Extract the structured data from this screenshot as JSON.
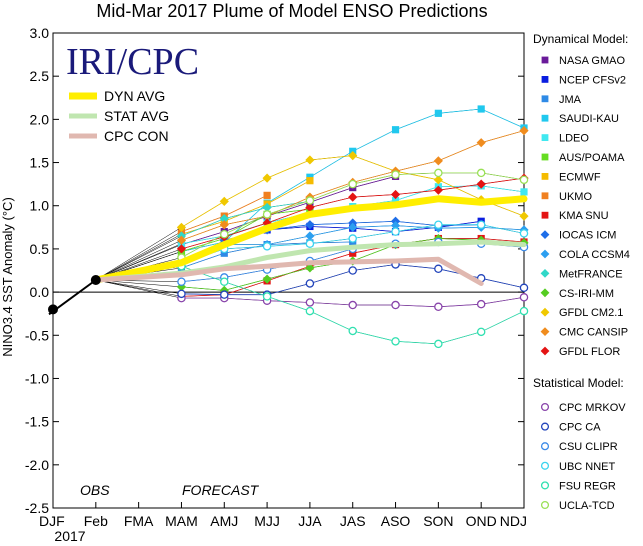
{
  "chart_data": {
    "type": "line",
    "title": "Mid-Mar 2017 Plume of Model ENSO Predictions",
    "logo_text": "IRI/CPC",
    "ylabel": "NINO3.4 SST Anomaly (°C)",
    "xlabel": "",
    "ylim": [
      -2.5,
      3.0
    ],
    "yticks": [
      "3.0",
      "2.5",
      "2.0",
      "1.5",
      "1.0",
      "0.5",
      "0.0",
      "-0.5",
      "-1.0",
      "-1.5",
      "-2.0",
      "-2.5"
    ],
    "categories": [
      "DJF",
      "Feb",
      "FMA",
      "MAM",
      "AMJ",
      "MJJ",
      "JJA",
      "JAS",
      "ASO",
      "SON",
      "OND",
      "NDJ"
    ],
    "year_label": "2017",
    "obs_label": "OBS",
    "forecast_label": "FORECAST",
    "grid": false,
    "zero_line": true,
    "observed": {
      "x": [
        "DJF",
        "Feb"
      ],
      "values": [
        -0.2,
        0.14
      ],
      "color": "#000000"
    },
    "averages": [
      {
        "name": "DYN AVG",
        "color": "#ffee00",
        "values": [
          null,
          0.14,
          null,
          0.34,
          0.55,
          0.74,
          0.9,
          0.97,
          1.01,
          1.08,
          1.04,
          1.08
        ]
      },
      {
        "name": "STAT AVG",
        "color": "#c0e6b0",
        "values": [
          null,
          0.14,
          null,
          0.22,
          0.29,
          0.4,
          0.48,
          0.52,
          0.55,
          0.56,
          0.58,
          0.55
        ]
      },
      {
        "name": "CPC CON",
        "color": "#e0b8b0",
        "values": [
          null,
          0.14,
          null,
          0.2,
          0.27,
          0.3,
          0.34,
          0.35,
          0.36,
          0.38,
          0.1,
          null
        ]
      }
    ],
    "dynamical_title": "Dynamical Model:",
    "statistical_title": "Statistical Model:",
    "series": [
      {
        "name": "NASA GMAO",
        "group": "dynamical",
        "marker": "square",
        "color": "#6a1b9a",
        "values": [
          null,
          0.14,
          null,
          0.55,
          0.7,
          0.88,
          1.04,
          1.21,
          1.34,
          null,
          null,
          null
        ]
      },
      {
        "name": "NCEP CFSv2",
        "group": "dynamical",
        "marker": "square",
        "color": "#0a1ee0",
        "values": [
          null,
          0.14,
          null,
          0.36,
          0.55,
          0.72,
          0.76,
          0.74,
          0.7,
          0.75,
          0.82,
          null
        ]
      },
      {
        "name": "JMA",
        "group": "dynamical",
        "marker": "square",
        "color": "#2e8ae6",
        "values": [
          null,
          0.14,
          null,
          0.28,
          0.45,
          0.55,
          0.57,
          0.58,
          null,
          null,
          null,
          null
        ]
      },
      {
        "name": "SAUDI-KAU",
        "group": "dynamical",
        "marker": "square",
        "color": "#20c8ee",
        "values": [
          null,
          0.14,
          null,
          0.47,
          0.58,
          1.03,
          1.33,
          1.63,
          1.88,
          2.07,
          2.12,
          1.9
        ]
      },
      {
        "name": "LDEO",
        "group": "dynamical",
        "marker": "square",
        "color": "#40e8f0",
        "values": [
          null,
          0.14,
          null,
          0.56,
          0.65,
          0.8,
          0.92,
          0.99,
          1.06,
          1.22,
          1.23,
          1.16
        ]
      },
      {
        "name": "AUS/POAMA",
        "group": "dynamical",
        "marker": "square",
        "color": "#66dd22",
        "values": [
          null,
          0.14,
          null,
          0.47,
          0.62,
          0.9,
          0.96,
          null,
          null,
          null,
          null,
          null
        ]
      },
      {
        "name": "ECMWF",
        "group": "dynamical",
        "marker": "square",
        "color": "#f5bb00",
        "values": [
          null,
          0.14,
          null,
          0.67,
          0.82,
          1.02,
          1.29,
          null,
          null,
          null,
          null,
          null
        ]
      },
      {
        "name": "UKMO",
        "group": "dynamical",
        "marker": "square",
        "color": "#f08020",
        "values": [
          null,
          0.14,
          null,
          0.7,
          0.88,
          1.12,
          null,
          null,
          null,
          null,
          null,
          null
        ]
      },
      {
        "name": "KMA SNU",
        "group": "dynamical",
        "marker": "square",
        "color": "#e41414",
        "values": [
          null,
          0.14,
          null,
          -0.05,
          -0.03,
          0.13,
          0.3,
          0.45,
          0.55,
          0.62,
          0.62,
          0.58
        ]
      },
      {
        "name": "IOCAS ICM",
        "group": "dynamical",
        "marker": "diamond",
        "color": "#1e6ee8",
        "values": [
          null,
          0.14,
          null,
          0.3,
          0.6,
          0.72,
          0.78,
          0.8,
          0.82,
          0.77,
          0.78,
          null
        ]
      },
      {
        "name": "COLA CCSM4",
        "group": "dynamical",
        "marker": "diamond",
        "color": "#2c9ff0",
        "values": [
          null,
          0.14,
          null,
          0.3,
          0.55,
          0.55,
          0.65,
          0.75,
          0.77,
          0.74,
          0.75,
          0.72
        ]
      },
      {
        "name": "MetFRANCE",
        "group": "dynamical",
        "marker": "diamond",
        "color": "#30d8c8",
        "values": [
          null,
          0.14,
          null,
          0.65,
          0.85,
          0.98,
          1.05,
          null,
          null,
          null,
          null,
          null
        ]
      },
      {
        "name": "CS-IRI-MM",
        "group": "dynamical",
        "marker": "diamond",
        "color": "#55cc22",
        "values": [
          null,
          0.14,
          null,
          0.06,
          0.02,
          0.15,
          0.28,
          0.36,
          0.55,
          0.62,
          0.6,
          0.57
        ]
      },
      {
        "name": "GFDL CM2.1",
        "group": "dynamical",
        "marker": "diamond",
        "color": "#f0c800",
        "values": [
          null,
          0.14,
          null,
          0.75,
          1.05,
          1.32,
          1.53,
          1.58,
          1.4,
          1.3,
          1.07,
          0.88
        ]
      },
      {
        "name": "CMC CANSIP",
        "group": "dynamical",
        "marker": "diamond",
        "color": "#f08c1e",
        "values": [
          null,
          0.14,
          null,
          0.6,
          0.78,
          0.88,
          1.1,
          1.27,
          1.4,
          1.52,
          1.73,
          1.87
        ]
      },
      {
        "name": "GFDL FLOR",
        "group": "dynamical",
        "marker": "diamond",
        "color": "#e41414",
        "values": [
          null,
          0.14,
          null,
          0.5,
          0.64,
          0.8,
          0.98,
          1.1,
          1.13,
          1.18,
          1.25,
          1.32
        ]
      },
      {
        "name": "CPC MRKOV",
        "group": "statistical",
        "marker": "circle",
        "color": "#8844aa",
        "values": [
          null,
          0.14,
          null,
          -0.07,
          -0.07,
          -0.1,
          -0.12,
          -0.15,
          -0.15,
          -0.17,
          -0.14,
          -0.06
        ]
      },
      {
        "name": "CPC CA",
        "group": "statistical",
        "marker": "circle",
        "color": "#2244bb",
        "values": [
          null,
          0.14,
          null,
          -0.02,
          -0.03,
          -0.03,
          0.1,
          0.25,
          0.32,
          0.27,
          0.16,
          0.05
        ]
      },
      {
        "name": "CSU CLIPR",
        "group": "statistical",
        "marker": "circle",
        "color": "#3a8ae8",
        "values": [
          null,
          0.14,
          null,
          0.12,
          0.17,
          0.26,
          0.36,
          0.5,
          0.56,
          0.58,
          0.56,
          0.52
        ]
      },
      {
        "name": "UBC NNET",
        "group": "statistical",
        "marker": "circle",
        "color": "#3ad4ee",
        "values": [
          null,
          0.14,
          null,
          0.33,
          0.5,
          0.53,
          0.56,
          0.62,
          0.7,
          0.78,
          0.78,
          0.68
        ]
      },
      {
        "name": "FSU REGR",
        "group": "statistical",
        "marker": "circle",
        "color": "#30e0b0",
        "values": [
          null,
          0.14,
          null,
          0.3,
          0.12,
          -0.05,
          -0.22,
          -0.45,
          -0.57,
          -0.6,
          -0.46,
          -0.22
        ]
      },
      {
        "name": "UCLA-TCD",
        "group": "statistical",
        "marker": "circle",
        "color": "#99e055",
        "values": [
          null,
          0.14,
          null,
          0.4,
          0.67,
          0.9,
          1.06,
          1.25,
          1.36,
          1.38,
          1.38,
          1.3
        ]
      }
    ]
  }
}
